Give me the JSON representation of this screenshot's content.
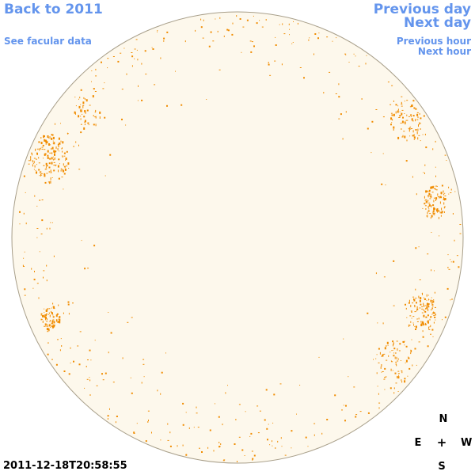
{
  "nav": {
    "back_label": "Back to 2011",
    "facular_label": "See facular data",
    "prev_day_label": "Previous day",
    "next_day_label": "Next day",
    "prev_hour_label": "Previous hour",
    "next_hour_label": "Next hour"
  },
  "timestamp": "2011-12-18T20:58:55",
  "compass": {
    "north": "N",
    "east": "E",
    "center": "+",
    "west": "W",
    "south": "S"
  },
  "colors": {
    "link": "#6495ed",
    "disk_fill": "#fdf8ec",
    "disk_stroke": "#a89f8a",
    "spot": "#f08c00"
  }
}
